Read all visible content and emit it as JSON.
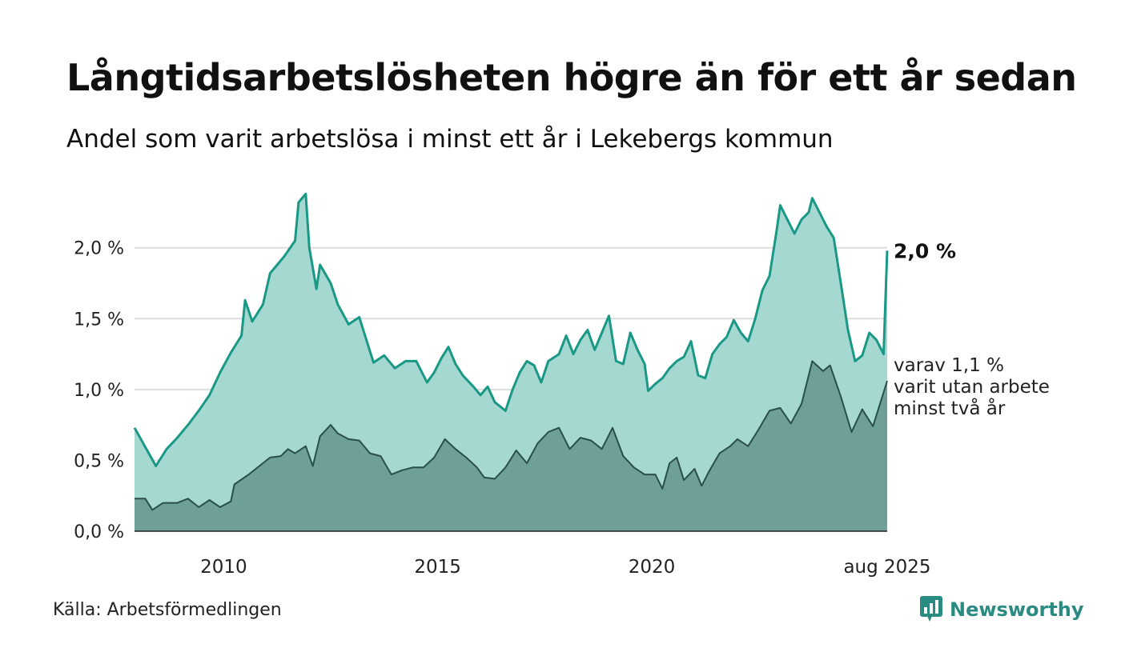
{
  "title": "Långtidsarbetslösheten högre än för ett år sedan",
  "subtitle": "Andel som varit arbetslösa i minst ett år i Lekebergs kommun",
  "source": "Källa: Arbetsförmedlingen",
  "brand": {
    "name": "Newsworthy",
    "icon": "bar-chart-speech-bubble-icon",
    "color": "#2a8b82"
  },
  "colors": {
    "series1_line": "#1a9886",
    "series1_fill": "#a6d8d2",
    "series2_line": "#2a4e48",
    "series2_fill": "#6e9f98",
    "grid": "#dddddd"
  },
  "chart_data": {
    "type": "area",
    "x_start": "2008-01",
    "x_end": "2025-08",
    "x_tick_labels": [
      "2010",
      "2015",
      "2020",
      "aug 2025"
    ],
    "ylim": [
      0,
      2.45
    ],
    "y_ticks": [
      0,
      0.5,
      1.0,
      1.5,
      2.0
    ],
    "y_tick_labels": [
      "0,0 %",
      "0,5 %",
      "1,0 %",
      "1,5 %",
      "2,0 %"
    ],
    "grid": true,
    "end_value_label": "2,0 %",
    "annotation_lines": [
      "varav 1,1 %",
      "varit utan arbete",
      "minst två år"
    ],
    "series": [
      {
        "key": "minst_ett_ar",
        "points": [
          [
            "2008-01",
            0.73
          ],
          [
            "2008-05",
            0.55
          ],
          [
            "2008-07",
            0.46
          ],
          [
            "2008-10",
            0.58
          ],
          [
            "2009-01",
            0.66
          ],
          [
            "2009-04",
            0.75
          ],
          [
            "2009-07",
            0.85
          ],
          [
            "2009-10",
            0.96
          ],
          [
            "2010-01",
            1.12
          ],
          [
            "2010-04",
            1.26
          ],
          [
            "2010-07",
            1.38
          ],
          [
            "2010-08",
            1.63
          ],
          [
            "2010-10",
            1.48
          ],
          [
            "2011-01",
            1.6
          ],
          [
            "2011-03",
            1.82
          ],
          [
            "2011-05",
            1.88
          ],
          [
            "2011-07",
            1.94
          ],
          [
            "2011-10",
            2.05
          ],
          [
            "2011-11",
            2.32
          ],
          [
            "2012-01",
            2.38
          ],
          [
            "2012-02",
            2.0
          ],
          [
            "2012-04",
            1.71
          ],
          [
            "2012-05",
            1.88
          ],
          [
            "2012-08",
            1.75
          ],
          [
            "2012-10",
            1.6
          ],
          [
            "2013-01",
            1.46
          ],
          [
            "2013-04",
            1.51
          ],
          [
            "2013-06",
            1.35
          ],
          [
            "2013-08",
            1.19
          ],
          [
            "2013-11",
            1.24
          ],
          [
            "2014-02",
            1.15
          ],
          [
            "2014-05",
            1.2
          ],
          [
            "2014-08",
            1.2
          ],
          [
            "2014-11",
            1.05
          ],
          [
            "2015-01",
            1.12
          ],
          [
            "2015-03",
            1.22
          ],
          [
            "2015-05",
            1.3
          ],
          [
            "2015-07",
            1.18
          ],
          [
            "2015-09",
            1.1
          ],
          [
            "2015-12",
            1.02
          ],
          [
            "2016-02",
            0.96
          ],
          [
            "2016-04",
            1.02
          ],
          [
            "2016-06",
            0.91
          ],
          [
            "2016-09",
            0.85
          ],
          [
            "2016-11",
            1.0
          ],
          [
            "2017-01",
            1.12
          ],
          [
            "2017-03",
            1.2
          ],
          [
            "2017-05",
            1.17
          ],
          [
            "2017-07",
            1.05
          ],
          [
            "2017-09",
            1.2
          ],
          [
            "2017-12",
            1.25
          ],
          [
            "2018-02",
            1.38
          ],
          [
            "2018-04",
            1.25
          ],
          [
            "2018-06",
            1.35
          ],
          [
            "2018-08",
            1.42
          ],
          [
            "2018-10",
            1.28
          ],
          [
            "2018-12",
            1.4
          ],
          [
            "2019-02",
            1.52
          ],
          [
            "2019-04",
            1.2
          ],
          [
            "2019-06",
            1.18
          ],
          [
            "2019-08",
            1.4
          ],
          [
            "2019-10",
            1.28
          ],
          [
            "2019-12",
            1.18
          ],
          [
            "2020-01",
            0.99
          ],
          [
            "2020-03",
            1.04
          ],
          [
            "2020-05",
            1.08
          ],
          [
            "2020-07",
            1.15
          ],
          [
            "2020-09",
            1.2
          ],
          [
            "2020-11",
            1.23
          ],
          [
            "2021-01",
            1.34
          ],
          [
            "2021-03",
            1.1
          ],
          [
            "2021-05",
            1.08
          ],
          [
            "2021-07",
            1.25
          ],
          [
            "2021-09",
            1.32
          ],
          [
            "2021-11",
            1.37
          ],
          [
            "2022-01",
            1.49
          ],
          [
            "2022-03",
            1.4
          ],
          [
            "2022-05",
            1.34
          ],
          [
            "2022-07",
            1.5
          ],
          [
            "2022-09",
            1.7
          ],
          [
            "2022-11",
            1.8
          ],
          [
            "2023-01",
            2.12
          ],
          [
            "2023-02",
            2.3
          ],
          [
            "2023-04",
            2.2
          ],
          [
            "2023-06",
            2.1
          ],
          [
            "2023-08",
            2.2
          ],
          [
            "2023-10",
            2.25
          ],
          [
            "2023-11",
            2.35
          ],
          [
            "2024-01",
            2.25
          ],
          [
            "2024-03",
            2.15
          ],
          [
            "2024-05",
            2.07
          ],
          [
            "2024-07",
            1.75
          ],
          [
            "2024-09",
            1.42
          ],
          [
            "2024-11",
            1.2
          ],
          [
            "2025-01",
            1.24
          ],
          [
            "2025-03",
            1.4
          ],
          [
            "2025-05",
            1.35
          ],
          [
            "2025-07",
            1.25
          ],
          [
            "2025-08",
            1.98
          ]
        ]
      },
      {
        "key": "minst_tva_ar",
        "points": [
          [
            "2008-01",
            0.23
          ],
          [
            "2008-04",
            0.23
          ],
          [
            "2008-06",
            0.15
          ],
          [
            "2008-09",
            0.2
          ],
          [
            "2009-01",
            0.2
          ],
          [
            "2009-04",
            0.23
          ],
          [
            "2009-07",
            0.17
          ],
          [
            "2009-10",
            0.22
          ],
          [
            "2010-01",
            0.17
          ],
          [
            "2010-04",
            0.21
          ],
          [
            "2010-05",
            0.33
          ],
          [
            "2010-09",
            0.4
          ],
          [
            "2010-12",
            0.46
          ],
          [
            "2011-03",
            0.52
          ],
          [
            "2011-06",
            0.53
          ],
          [
            "2011-08",
            0.58
          ],
          [
            "2011-10",
            0.55
          ],
          [
            "2012-01",
            0.6
          ],
          [
            "2012-03",
            0.46
          ],
          [
            "2012-05",
            0.67
          ],
          [
            "2012-08",
            0.75
          ],
          [
            "2012-10",
            0.69
          ],
          [
            "2013-01",
            0.65
          ],
          [
            "2013-04",
            0.64
          ],
          [
            "2013-07",
            0.55
          ],
          [
            "2013-10",
            0.53
          ],
          [
            "2014-01",
            0.4
          ],
          [
            "2014-04",
            0.43
          ],
          [
            "2014-07",
            0.45
          ],
          [
            "2014-10",
            0.45
          ],
          [
            "2015-01",
            0.52
          ],
          [
            "2015-04",
            0.65
          ],
          [
            "2015-07",
            0.58
          ],
          [
            "2015-10",
            0.52
          ],
          [
            "2016-01",
            0.45
          ],
          [
            "2016-03",
            0.38
          ],
          [
            "2016-06",
            0.37
          ],
          [
            "2016-09",
            0.45
          ],
          [
            "2016-12",
            0.57
          ],
          [
            "2017-03",
            0.48
          ],
          [
            "2017-06",
            0.62
          ],
          [
            "2017-09",
            0.7
          ],
          [
            "2017-12",
            0.73
          ],
          [
            "2018-03",
            0.58
          ],
          [
            "2018-06",
            0.66
          ],
          [
            "2018-09",
            0.64
          ],
          [
            "2018-12",
            0.58
          ],
          [
            "2019-03",
            0.73
          ],
          [
            "2019-06",
            0.53
          ],
          [
            "2019-09",
            0.45
          ],
          [
            "2019-12",
            0.4
          ],
          [
            "2020-03",
            0.4
          ],
          [
            "2020-05",
            0.3
          ],
          [
            "2020-07",
            0.48
          ],
          [
            "2020-09",
            0.52
          ],
          [
            "2020-11",
            0.36
          ],
          [
            "2021-02",
            0.44
          ],
          [
            "2021-04",
            0.32
          ],
          [
            "2021-06",
            0.42
          ],
          [
            "2021-09",
            0.55
          ],
          [
            "2021-12",
            0.6
          ],
          [
            "2022-02",
            0.65
          ],
          [
            "2022-05",
            0.6
          ],
          [
            "2022-08",
            0.72
          ],
          [
            "2022-11",
            0.85
          ],
          [
            "2023-02",
            0.87
          ],
          [
            "2023-05",
            0.76
          ],
          [
            "2023-08",
            0.9
          ],
          [
            "2023-11",
            1.2
          ],
          [
            "2024-02",
            1.13
          ],
          [
            "2024-04",
            1.17
          ],
          [
            "2024-07",
            0.95
          ],
          [
            "2024-10",
            0.7
          ],
          [
            "2025-01",
            0.86
          ],
          [
            "2025-04",
            0.74
          ],
          [
            "2025-08",
            1.06
          ]
        ]
      }
    ]
  }
}
